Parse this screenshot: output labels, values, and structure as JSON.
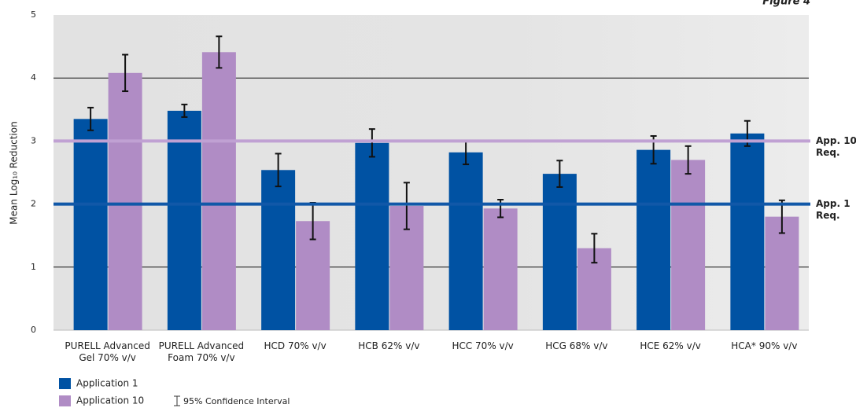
{
  "chart_data": {
    "type": "bar",
    "title": "Figure 4",
    "y_label": "Mean Log₁₀ Reduction",
    "categories": [
      [
        "PURELL Advanced",
        "Gel 70% v/v"
      ],
      [
        "PURELL Advanced",
        "Foam 70% v/v"
      ],
      [
        "HCD 70% v/v"
      ],
      [
        "HCB 62% v/v"
      ],
      [
        "HCC 70% v/v"
      ],
      [
        "HCG 68% v/v"
      ],
      [
        "HCE 62% v/v"
      ],
      [
        "HCA* 90% v/v"
      ]
    ],
    "series": [
      {
        "name": "Application 1",
        "color": "#0052a3",
        "values": [
          3.35,
          3.48,
          2.54,
          2.97,
          2.82,
          2.48,
          2.86,
          3.12
        ],
        "errors": [
          0.18,
          0.1,
          0.26,
          0.22,
          0.19,
          0.21,
          0.22,
          0.2
        ]
      },
      {
        "name": "Application 10",
        "color": "#b08cc5",
        "values": [
          4.08,
          4.41,
          1.73,
          1.97,
          1.93,
          1.3,
          2.7,
          1.8
        ],
        "errors": [
          0.29,
          0.25,
          0.29,
          0.37,
          0.14,
          0.23,
          0.22,
          0.26
        ]
      }
    ],
    "reference_lines": [
      {
        "value": 3,
        "label_lines": [
          "App. 10",
          "Req."
        ],
        "color": "#c0a1d3"
      },
      {
        "value": 2,
        "label_lines": [
          "App. 1",
          "Req."
        ],
        "color": "#1158a8"
      }
    ],
    "ci_label": "95% Confidence Interval",
    "ylim": [
      0,
      5
    ],
    "yticks": [
      0,
      1,
      2,
      3,
      4,
      5
    ],
    "grid": true
  }
}
